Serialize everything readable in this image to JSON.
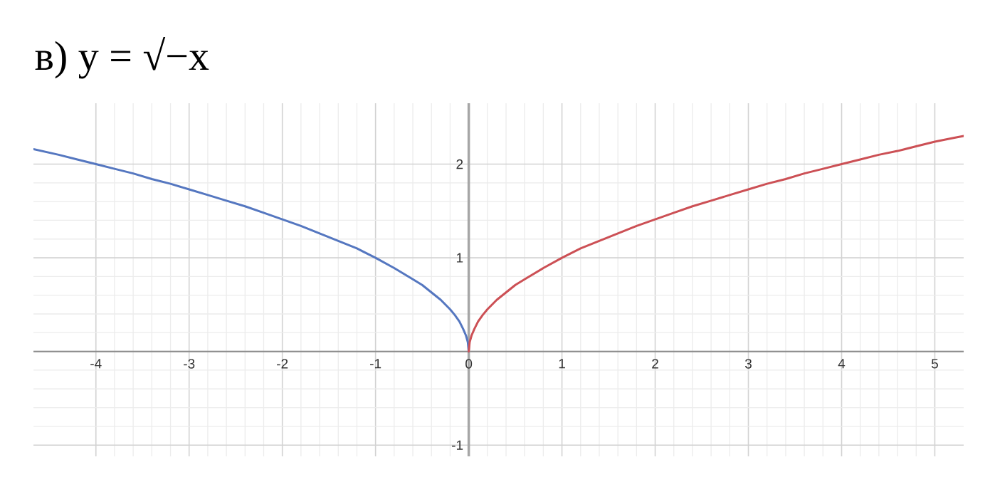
{
  "chart_data": {
    "type": "line",
    "title": "в) y = √−x",
    "series": [
      {
        "color": "#5577c0",
        "x": [
          -4.67,
          -4.4,
          -4.2,
          -4.0,
          -3.8,
          -3.6,
          -3.4,
          -3.2,
          -3.0,
          -2.8,
          -2.6,
          -2.4,
          -2.2,
          -2.0,
          -1.8,
          -1.6,
          -1.4,
          -1.2,
          -1.0,
          -0.8,
          -0.6,
          -0.5,
          -0.4,
          -0.3,
          -0.2,
          -0.15,
          -0.1,
          -0.06,
          -0.03,
          -0.01,
          0
        ],
        "values": [
          2.16,
          2.1,
          2.05,
          2.0,
          1.95,
          1.9,
          1.84,
          1.79,
          1.73,
          1.67,
          1.61,
          1.55,
          1.48,
          1.41,
          1.34,
          1.26,
          1.18,
          1.1,
          1.0,
          0.89,
          0.77,
          0.71,
          0.63,
          0.55,
          0.45,
          0.39,
          0.32,
          0.24,
          0.17,
          0.1,
          0
        ]
      },
      {
        "color": "#cc5055",
        "x": [
          0,
          0.01,
          0.03,
          0.06,
          0.1,
          0.15,
          0.2,
          0.3,
          0.4,
          0.5,
          0.6,
          0.8,
          1.0,
          1.2,
          1.4,
          1.6,
          1.8,
          2.0,
          2.2,
          2.4,
          2.6,
          2.8,
          3.0,
          3.2,
          3.4,
          3.6,
          3.8,
          4.0,
          4.2,
          4.4,
          4.6,
          4.8,
          5.0,
          5.2,
          5.31
        ],
        "values": [
          0,
          0.1,
          0.17,
          0.24,
          0.32,
          0.39,
          0.45,
          0.55,
          0.63,
          0.71,
          0.77,
          0.89,
          1.0,
          1.1,
          1.18,
          1.26,
          1.34,
          1.41,
          1.48,
          1.55,
          1.61,
          1.67,
          1.73,
          1.79,
          1.84,
          1.9,
          1.95,
          2.0,
          2.05,
          2.1,
          2.14,
          2.19,
          2.24,
          2.28,
          2.3
        ]
      }
    ],
    "xlim": [
      -4.67,
      5.31
    ],
    "ylim": [
      -1.12,
      2.65
    ],
    "xticks": [
      -4,
      -3,
      -2,
      -1,
      0,
      1,
      2,
      3,
      4,
      5
    ],
    "yticks": [
      -1,
      {
        "value": 0,
        "label": null
      },
      1,
      2
    ],
    "grid": true
  }
}
